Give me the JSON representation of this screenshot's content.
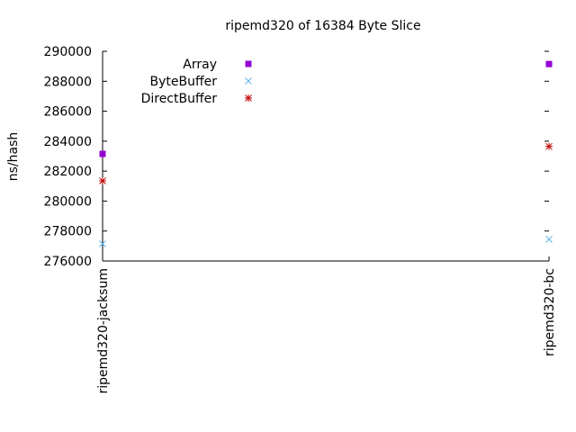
{
  "chart_data": {
    "type": "scatter",
    "title": "ripemd320 of 16384 Byte Slice",
    "xlabel": "",
    "ylabel": "ns/hash",
    "categories": [
      "ripemd320-jacksum",
      "ripemd320-bc"
    ],
    "ylim": [
      276000,
      290000
    ],
    "yticks": [
      "276000",
      "278000",
      "280000",
      "282000",
      "284000",
      "286000",
      "288000",
      "290000"
    ],
    "grid": false,
    "legend_position": "top-left",
    "series": [
      {
        "name": "Array",
        "marker": "square",
        "color": "#9400d3",
        "values": [
          283150,
          289150
        ]
      },
      {
        "name": "ByteBuffer",
        "marker": "x",
        "color": "#56b4e9",
        "values": [
          277150,
          277450
        ]
      },
      {
        "name": "DirectBuffer",
        "marker": "star",
        "color": "#c00000",
        "values": [
          281350,
          283650
        ]
      }
    ]
  }
}
